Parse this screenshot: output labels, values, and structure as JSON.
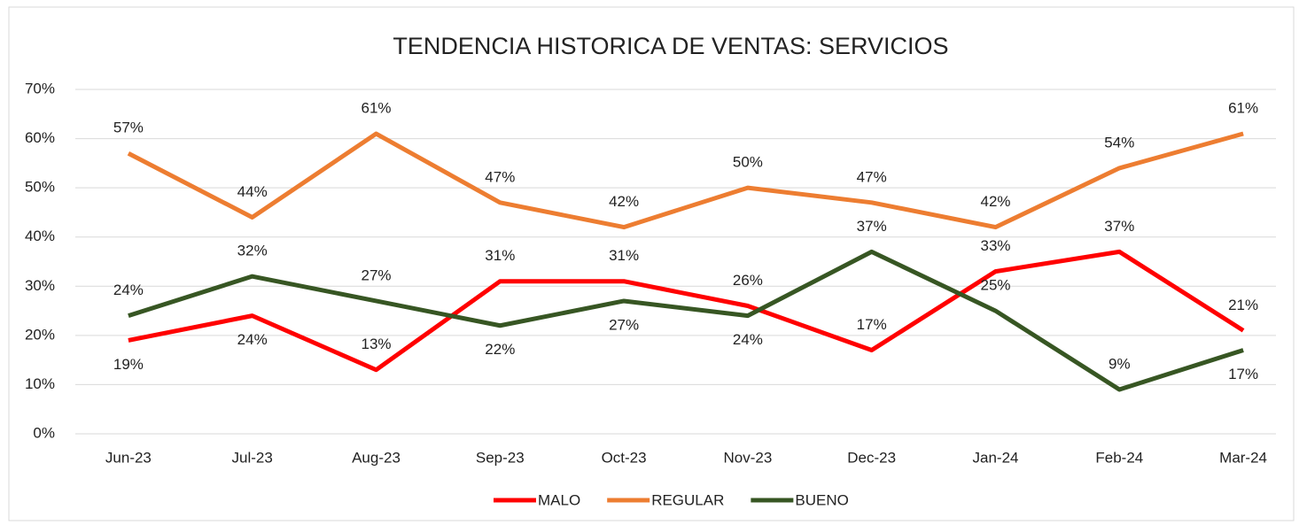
{
  "chart_data": {
    "type": "line",
    "title": "TENDENCIA HISTORICA DE VENTAS: SERVICIOS",
    "categories": [
      "Jun-23",
      "Jul-23",
      "Aug-23",
      "Sep-23",
      "Oct-23",
      "Nov-23",
      "Dec-23",
      "Jan-24",
      "Feb-24",
      "Mar-24"
    ],
    "series": [
      {
        "name": "MALO",
        "color": "#ff0000",
        "values": [
          19,
          24,
          13,
          31,
          31,
          26,
          17,
          33,
          37,
          21
        ],
        "value_labels": [
          "19%",
          "24%",
          "13%",
          "31%",
          "31%",
          "26%",
          "17%",
          "33%",
          "37%",
          "21%"
        ]
      },
      {
        "name": "REGULAR",
        "color": "#ed7d31",
        "values": [
          57,
          44,
          61,
          47,
          42,
          50,
          47,
          42,
          54,
          61
        ],
        "value_labels": [
          "57%",
          "44%",
          "61%",
          "47%",
          "42%",
          "50%",
          "47%",
          "42%",
          "54%",
          "61%"
        ]
      },
      {
        "name": "BUENO",
        "color": "#375623",
        "values": [
          24,
          32,
          27,
          22,
          27,
          24,
          37,
          25,
          9,
          17
        ],
        "value_labels": [
          "24%",
          "32%",
          "27%",
          "22%",
          "27%",
          "24%",
          "37%",
          "25%",
          "9%",
          "17%"
        ]
      }
    ],
    "ylim": [
      0,
      70
    ],
    "yticks": [
      {
        "value": 0,
        "label": "0%"
      },
      {
        "value": 10,
        "label": "10%"
      },
      {
        "value": 20,
        "label": "20%"
      },
      {
        "value": 30,
        "label": "30%"
      },
      {
        "value": 40,
        "label": "40%"
      },
      {
        "value": 50,
        "label": "50%"
      },
      {
        "value": 60,
        "label": "60%"
      },
      {
        "value": 70,
        "label": "70%"
      }
    ],
    "grid": true,
    "legend": "bottom"
  }
}
